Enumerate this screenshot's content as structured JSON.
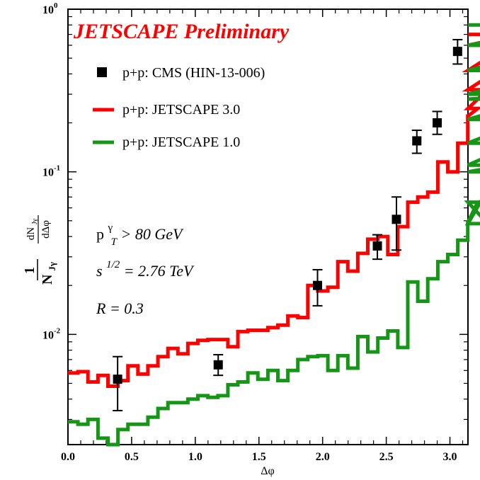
{
  "chart_data": {
    "type": "step-line",
    "title": "JETSCAPE Preliminary",
    "xlabel": "Δφ",
    "ylabel": {
      "numerator_1": "1",
      "denominator_1": "N",
      "denominator_1_sub": "Jγ",
      "numerator_2": "dN",
      "numerator_2_sub": "Jγ",
      "denominator_2": "dΔφ"
    },
    "xlim": [
      0.0,
      3.1416
    ],
    "ylim": [
      0.0021,
      1.0
    ],
    "yscale": "log",
    "x_ticks": [
      {
        "value": 0.0,
        "label": "0.0"
      },
      {
        "value": 0.5,
        "label": "0.5"
      },
      {
        "value": 1.0,
        "label": "1.0"
      },
      {
        "value": 1.5,
        "label": "1.5"
      },
      {
        "value": 2.0,
        "label": "2.0"
      },
      {
        "value": 2.5,
        "label": "2.5"
      },
      {
        "value": 3.0,
        "label": "3.0"
      }
    ],
    "y_ticks": [
      {
        "value": 0.01,
        "base": "10",
        "exp": "-2"
      },
      {
        "value": 0.1,
        "base": "10",
        "exp": "-1"
      },
      {
        "value": 1.0,
        "base": "10",
        "exp": "0"
      }
    ],
    "annotations": [
      {
        "kind": "pt",
        "base": "p",
        "sup": "γ",
        "sub": "T",
        "rest": " > 80 GeV"
      },
      {
        "kind": "sqrt_s",
        "base": "s",
        "sup": "1/2",
        "rest": " = 2.76 TeV"
      },
      {
        "kind": "plain",
        "text": "R = 0.3"
      }
    ],
    "legend": {
      "position": "top-left",
      "entries": [
        {
          "label": "p+p: CMS (HIN-13-006)",
          "marker": "square",
          "color": "#000000"
        },
        {
          "label": "p+p: JETSCAPE 3.0",
          "marker": "line",
          "color": "#ff0000"
        },
        {
          "label": "p+p: JETSCAPE 1.0",
          "marker": "line",
          "color": "#169616"
        }
      ]
    },
    "series": [
      {
        "name": "p+p: JETSCAPE 3.0",
        "style": "step",
        "color": "#ff0000",
        "bin_width": 0.0785,
        "values": [
          0.0058,
          0.0059,
          0.0051,
          0.0056,
          0.0048,
          0.0052,
          0.0064,
          0.0057,
          0.0064,
          0.0073,
          0.0082,
          0.0076,
          0.0088,
          0.0092,
          0.0093,
          0.0093,
          0.0084,
          0.0104,
          0.0106,
          0.0106,
          0.011,
          0.0114,
          0.013,
          0.0127,
          0.02,
          0.0185,
          0.0195,
          0.028,
          0.0245,
          0.0315,
          0.0385,
          0.04,
          0.031,
          0.046,
          0.065,
          0.07,
          0.075,
          0.115,
          0.1,
          0.15,
          0.22,
          0.245,
          0.32,
          0.42,
          0.6,
          0.7
        ]
      },
      {
        "name": "p+p: JETSCAPE 1.0",
        "style": "step",
        "color": "#169616",
        "bin_width": 0.0785,
        "values": [
          0.0029,
          0.0028,
          0.003,
          0.0023,
          0.0021,
          0.0026,
          0.0028,
          0.0028,
          0.0031,
          0.0035,
          0.0038,
          0.0038,
          0.004,
          0.0042,
          0.0041,
          0.0042,
          0.0049,
          0.0051,
          0.0058,
          0.0053,
          0.006,
          0.0052,
          0.006,
          0.007,
          0.0073,
          0.0074,
          0.006,
          0.0074,
          0.0062,
          0.0097,
          0.0078,
          0.0095,
          0.0105,
          0.0083,
          0.021,
          0.016,
          0.022,
          0.028,
          0.031,
          0.038,
          0.049,
          0.065,
          0.048,
          0.1,
          0.11,
          0.15,
          0.21,
          0.28,
          0.3,
          0.42,
          0.6,
          0.8
        ]
      },
      {
        "name": "p+p: CMS (HIN-13-006)",
        "style": "points",
        "color": "#000000",
        "points": [
          {
            "x": 0.39,
            "y": 0.0053,
            "ylo": 0.0034,
            "yhi": 0.0073
          },
          {
            "x": 1.18,
            "y": 0.0065,
            "ylo": 0.0056,
            "yhi": 0.0075
          },
          {
            "x": 1.96,
            "y": 0.02,
            "ylo": 0.015,
            "yhi": 0.025
          },
          {
            "x": 2.43,
            "y": 0.035,
            "ylo": 0.029,
            "yhi": 0.041
          },
          {
            "x": 2.58,
            "y": 0.051,
            "ylo": 0.033,
            "yhi": 0.07
          },
          {
            "x": 2.74,
            "y": 0.155,
            "ylo": 0.13,
            "yhi": 0.18
          },
          {
            "x": 2.9,
            "y": 0.2,
            "ylo": 0.17,
            "yhi": 0.235
          },
          {
            "x": 3.06,
            "y": 0.55,
            "ylo": 0.46,
            "yhi": 0.65
          }
        ]
      }
    ]
  }
}
